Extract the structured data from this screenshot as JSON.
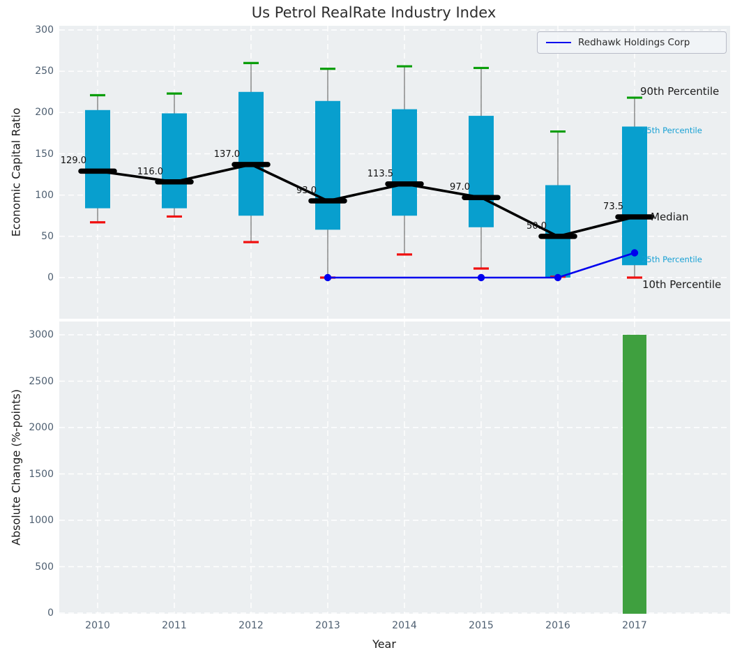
{
  "title": "Us Petrol RealRate Industry Index",
  "legend": {
    "label": "Redhawk Holdings Corp"
  },
  "colors": {
    "box": "#089fce",
    "bar": "#3fa03f",
    "median": "#000000",
    "median_line": "#000000",
    "company_line": "#0000ee",
    "cap_high": "#0a9e0a",
    "cap_low": "#f01010",
    "whisker": "#6f6f6f",
    "plot_bg": "#eceff1",
    "grid": "#ffffff",
    "tick_label": "#4d5e70",
    "annotation_cyan": "#17a0d4",
    "annotation_black": "#1a1a1a"
  },
  "chart_data": [
    {
      "type": "boxplot",
      "title": "Us Petrol RealRate Industry Index",
      "ylabel": "Economic Capital Ratio",
      "yticks": [
        0,
        50,
        100,
        150,
        200,
        250,
        300
      ],
      "ylim": [
        -50,
        305
      ],
      "grid": true,
      "legend_position": "upper right",
      "categories": [
        "2010",
        "2011",
        "2012",
        "2013",
        "2014",
        "2015",
        "2016",
        "2017"
      ],
      "boxes": [
        {
          "year": "2010",
          "p10": 67,
          "p25": 84,
          "median": 129,
          "p75": 203,
          "p90": 221,
          "label": "129.0"
        },
        {
          "year": "2011",
          "p10": 74,
          "p25": 84,
          "median": 116,
          "p75": 199,
          "p90": 223,
          "label": "116.0"
        },
        {
          "year": "2012",
          "p10": 43,
          "p25": 75,
          "median": 137,
          "p75": 225,
          "p90": 260,
          "label": "137.0"
        },
        {
          "year": "2013",
          "p10": 0,
          "p25": 58,
          "median": 93,
          "p75": 214,
          "p90": 253,
          "label": "93.0"
        },
        {
          "year": "2014",
          "p10": 28,
          "p25": 75,
          "median": 113.5,
          "p75": 204,
          "p90": 256,
          "label": "113.5"
        },
        {
          "year": "2015",
          "p10": 11,
          "p25": 61,
          "median": 97,
          "p75": 196,
          "p90": 254,
          "label": "97.0"
        },
        {
          "year": "2016",
          "p10": 1,
          "p25": 0,
          "median": 50,
          "p75": 112,
          "p90": 177,
          "label": "50.0"
        },
        {
          "year": "2017",
          "p10": 0,
          "p25": 15,
          "median": 73.5,
          "p75": 183,
          "p90": 218,
          "label": "73.5"
        }
      ],
      "series": [
        {
          "name": "Redhawk Holdings Corp",
          "x": [
            "2013",
            "2014",
            "2015",
            "2016",
            "2017"
          ],
          "y": [
            0,
            0,
            0,
            0,
            30
          ],
          "markers": [
            "2013",
            "2015",
            "2016",
            "2017"
          ]
        }
      ],
      "annotations": [
        {
          "text": "90th Percentile",
          "style": "black-lg",
          "x": 833,
          "y": 94
        },
        {
          "text": "75th Percentile",
          "style": "cyan-sm",
          "x": 835,
          "y": 150
        },
        {
          "text": "Median",
          "style": "black-lg",
          "x": 848,
          "y": 274
        },
        {
          "text": "25th Percentile",
          "style": "cyan-sm",
          "x": 835,
          "y": 335
        },
        {
          "text": "10th Percentile",
          "style": "black-lg",
          "x": 836,
          "y": 371
        }
      ]
    },
    {
      "type": "bar",
      "ylabel": "Absolute Change (%-points)",
      "xlabel": "Year",
      "yticks": [
        0,
        500,
        1000,
        1500,
        2000,
        2500,
        3000
      ],
      "ylim": [
        0,
        3150
      ],
      "grid": true,
      "categories": [
        "2010",
        "2011",
        "2012",
        "2013",
        "2014",
        "2015",
        "2016",
        "2017"
      ],
      "values": [
        null,
        null,
        null,
        null,
        null,
        null,
        null,
        3000
      ]
    }
  ]
}
